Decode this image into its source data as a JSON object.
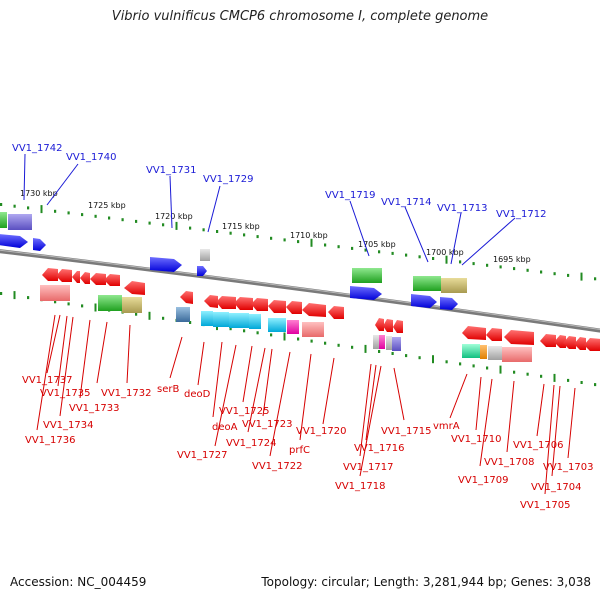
{
  "title": "Vibrio vulnificus CMCP6 chromosome I, complete genome",
  "footer": {
    "accession": "Accession: NC_004459",
    "info": "Topology: circular; Length: 3,281,944 bp; Genes: 3,038"
  },
  "colors": {
    "blue_gene": "#1414e6",
    "red_gene": "#f00000",
    "backbone": "#808080",
    "tick": "#228b22",
    "top_label": "#1a1ad6",
    "bottom_label": "#d60000"
  },
  "kbp_labels": [
    "1730 kbp",
    "1725 kbp",
    "1720 kbp",
    "1715 kbp",
    "1710 kbp",
    "1705 kbp",
    "1700 kbp",
    "1695 kbp"
  ],
  "top_labels": [
    "VV1_1742",
    "VV1_1740",
    "VV1_1731",
    "VV1_1729",
    "VV1_1719",
    "VV1_1714",
    "VV1_1713",
    "VV1_1712"
  ],
  "bottom_labels": [
    "VV1_1737",
    "VV1_1735",
    "VV1_1734",
    "VV1_1736",
    "VV1_1733",
    "VV1_1732",
    "serB",
    "deoD",
    "deoA",
    "VV1_1727",
    "VV1_1725",
    "VV1_1724",
    "VV1_1723",
    "VV1_1722",
    "prfC",
    "VV1_1720",
    "VV1_1716",
    "VV1_1717",
    "VV1_1718",
    "VV1_1715",
    "vmrA",
    "VV1_1710",
    "VV1_1709",
    "VV1_1708",
    "VV1_1706",
    "VV1_1704",
    "VV1_1705",
    "VV1_1703"
  ]
}
